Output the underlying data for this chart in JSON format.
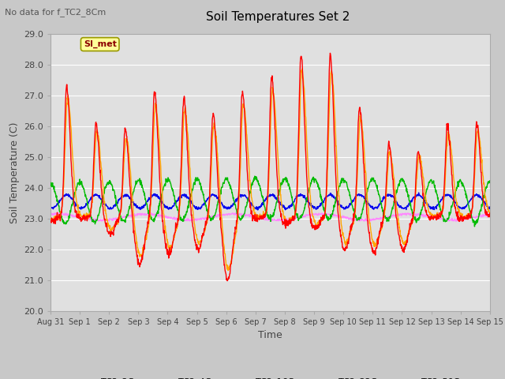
{
  "title": "Soil Temperatures Set 2",
  "xlabel": "Time",
  "ylabel": "Soil Temperature (C)",
  "top_left_text": "No data for f_TC2_8Cm",
  "annotation_box": "SI_met",
  "ylim": [
    20.0,
    29.0
  ],
  "yticks": [
    20.0,
    21.0,
    22.0,
    23.0,
    24.0,
    25.0,
    26.0,
    27.0,
    28.0,
    29.0
  ],
  "xtick_labels": [
    "Aug 31",
    "Sep 1",
    "Sep 2",
    "Sep 3",
    "Sep 4",
    "Sep 5",
    "Sep 6",
    "Sep 7",
    "Sep 8",
    "Sep 9",
    "Sep 10",
    "Sep 11",
    "Sep 12",
    "Sep 13",
    "Sep 14",
    "Sep 15"
  ],
  "series_colors": {
    "TC2_2Cm": "#FF0000",
    "TC2_4Cm": "#FFA500",
    "TC2_16Cm": "#00BB00",
    "TC2_32Cm": "#0000EE",
    "TC2_50Cm": "#FF88FF"
  },
  "fig_bg_color": "#C8C8C8",
  "plot_bg_color": "#E0E0E0",
  "grid_color": "#FFFFFF",
  "line_width": 1.0,
  "peak_heights_2cm": [
    27.3,
    26.1,
    25.9,
    27.1,
    26.9,
    26.4,
    27.1,
    27.6,
    28.3,
    28.3,
    26.6,
    25.4,
    25.2,
    26.0,
    26.1
  ],
  "trough_2cm": [
    22.9,
    23.0,
    22.5,
    21.5,
    21.8,
    22.0,
    21.0,
    23.0,
    22.8,
    22.7,
    22.0,
    21.9,
    22.0,
    23.0,
    23.0
  ],
  "base_2cm": 23.1,
  "base_4cm": 23.15,
  "base_16cm": 23.5,
  "base_32cm": 23.55,
  "base_50cm": 23.05
}
